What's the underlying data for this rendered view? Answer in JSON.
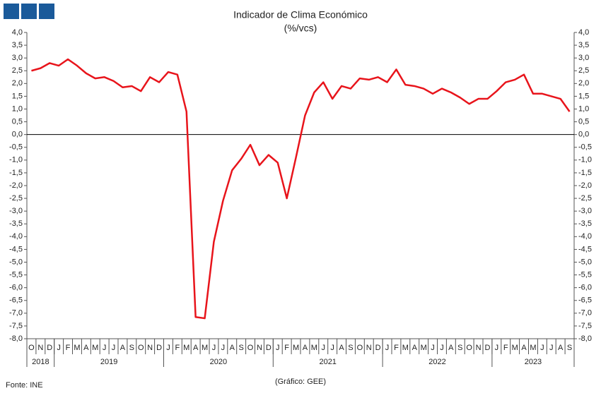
{
  "chart_data": {
    "type": "line",
    "title": "Indicador de Clima Económico",
    "subtitle": "(%/vcs)",
    "source": "Fonte: INE",
    "credit": "(Gráfico: GEE)",
    "categories": [
      "O",
      "N",
      "D",
      "J",
      "F",
      "M",
      "A",
      "M",
      "J",
      "J",
      "A",
      "S",
      "O",
      "N",
      "D",
      "J",
      "F",
      "M",
      "A",
      "M",
      "J",
      "J",
      "A",
      "S",
      "O",
      "N",
      "D",
      "J",
      "F",
      "M",
      "A",
      "M",
      "J",
      "J",
      "A",
      "S",
      "O",
      "N",
      "D",
      "J",
      "F",
      "M",
      "A",
      "M",
      "J",
      "J",
      "A",
      "S",
      "O",
      "N",
      "D",
      "J",
      "F",
      "M",
      "A",
      "M",
      "J",
      "J",
      "A",
      "S"
    ],
    "years": [
      "2018",
      "2019",
      "2020",
      "2021",
      "2022",
      "2023"
    ],
    "values": [
      2.5,
      2.6,
      2.8,
      2.7,
      2.95,
      2.7,
      2.4,
      2.2,
      2.25,
      2.1,
      1.85,
      1.9,
      1.7,
      2.25,
      2.05,
      2.45,
      2.35,
      0.9,
      -7.15,
      -7.2,
      -4.2,
      -2.6,
      -1.4,
      -0.95,
      -0.4,
      -1.2,
      -0.8,
      -1.1,
      -2.5,
      -0.9,
      0.75,
      1.65,
      2.05,
      1.4,
      1.9,
      1.8,
      2.2,
      2.15,
      2.25,
      2.05,
      2.55,
      1.95,
      1.9,
      1.8,
      1.6,
      1.8,
      1.65,
      1.45,
      1.2,
      1.4,
      1.4,
      1.7,
      2.05,
      2.15,
      2.35,
      1.6,
      1.6,
      1.5,
      1.4,
      0.9
    ],
    "color": "#e8141b",
    "ylim": [
      -8,
      4
    ],
    "yticks": [
      {
        "value": 4,
        "label": "4,0"
      },
      {
        "value": 3.5,
        "label": "3,5"
      },
      {
        "value": 3,
        "label": "3,0"
      },
      {
        "value": 2.5,
        "label": "2,5"
      },
      {
        "value": 2,
        "label": "2,0"
      },
      {
        "value": 1.5,
        "label": "1,5"
      },
      {
        "value": 1,
        "label": "1,0"
      },
      {
        "value": 0.5,
        "label": "0,5"
      },
      {
        "value": 0,
        "label": "0,0"
      },
      {
        "value": -0.5,
        "label": "-0,5"
      },
      {
        "value": -1,
        "label": "-1,0"
      },
      {
        "value": -1.5,
        "label": "-1,5"
      },
      {
        "value": -2,
        "label": "-2,0"
      },
      {
        "value": -2.5,
        "label": "-2,5"
      },
      {
        "value": -3,
        "label": "-3,0"
      },
      {
        "value": -3.5,
        "label": "-3,5"
      },
      {
        "value": -4,
        "label": "-4,0"
      },
      {
        "value": -4.5,
        "label": "-4,5"
      },
      {
        "value": -5,
        "label": "-5,0"
      },
      {
        "value": -5.5,
        "label": "-5,5"
      },
      {
        "value": -6,
        "label": "-6,0"
      },
      {
        "value": -6.5,
        "label": "-6,5"
      },
      {
        "value": -7,
        "label": "-7,0"
      },
      {
        "value": -7.5,
        "label": "-7,5"
      },
      {
        "value": -8,
        "label": "-8,0"
      }
    ],
    "grid": false
  }
}
